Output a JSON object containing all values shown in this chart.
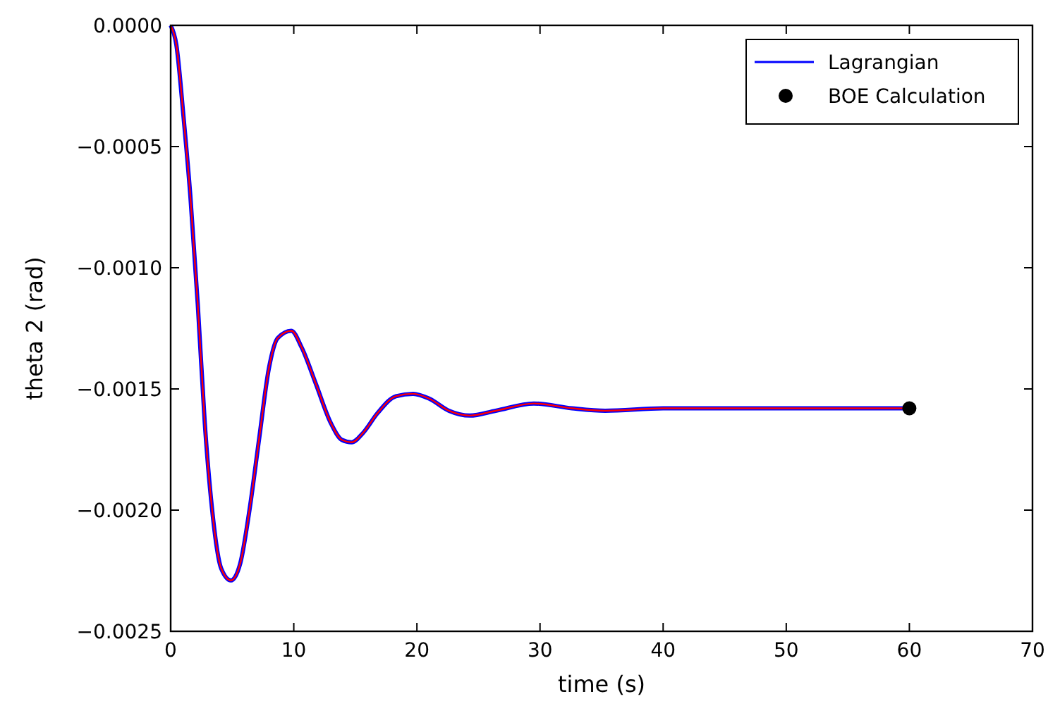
{
  "chart_data": {
    "type": "line",
    "xlabel": "time (s)",
    "ylabel": "theta 2 (rad)",
    "xlim": [
      0,
      70
    ],
    "xticks": [
      0,
      10,
      20,
      30,
      40,
      50,
      60,
      70
    ],
    "ylim": [
      -0.0025,
      0
    ],
    "yticks": [
      {
        "value": -0.0025,
        "label": "−0.0025"
      },
      {
        "value": -0.002,
        "label": "−0.0020"
      },
      {
        "value": -0.0015,
        "label": "−0.0015"
      },
      {
        "value": -0.001,
        "label": "−0.0010"
      },
      {
        "value": -0.0005,
        "label": "−0.0005"
      },
      {
        "value": 0,
        "label": "0.0000"
      }
    ],
    "x": [
      0,
      0.46,
      1.04,
      1.6,
      2.2,
      2.77,
      3.35,
      4.1,
      4.9,
      5.65,
      6.4,
      7.2,
      7.96,
      8.7,
      9.8,
      10.65,
      11.8,
      13.0,
      13.9,
      14.7,
      15.65,
      16.8,
      18.3,
      19.7,
      21.0,
      22.6,
      24.3,
      26.4,
      29.5,
      32.6,
      35.3,
      40,
      50,
      60
    ],
    "series": [
      {
        "name": "Lagrangian",
        "color": "#0000ff",
        "values": [
          0,
          -8e-05,
          -0.000375,
          -0.000705,
          -0.00115,
          -0.00164,
          -0.00199,
          -0.00224,
          -0.00229,
          -0.00222,
          -0.002,
          -0.0017,
          -0.00142,
          -0.00129,
          -0.00126,
          -0.00133,
          -0.00148,
          -0.00164,
          -0.00171,
          -0.00172,
          -0.00168,
          -0.0016,
          -0.00153,
          -0.00152,
          -0.00154,
          -0.00159,
          -0.00161,
          -0.00159,
          -0.00156,
          -0.00158,
          -0.00159,
          -0.00158,
          -0.00158,
          -0.00158
        ]
      },
      {
        "color": "#ff0000",
        "values": [
          0,
          -8e-05,
          -0.000375,
          -0.000705,
          -0.00115,
          -0.00164,
          -0.00199,
          -0.00224,
          -0.00229,
          -0.00222,
          -0.002,
          -0.0017,
          -0.00142,
          -0.00129,
          -0.00126,
          -0.00133,
          -0.00148,
          -0.00164,
          -0.00171,
          -0.00172,
          -0.00168,
          -0.0016,
          -0.00153,
          -0.00152,
          -0.00154,
          -0.00159,
          -0.00161,
          -0.00159,
          -0.00156,
          -0.00158,
          -0.00159,
          -0.00158,
          -0.00158,
          -0.00158
        ]
      },
      {
        "name": "BOE Calculation",
        "type": "scatter",
        "color": "#000000",
        "marker": "circle",
        "x": [
          60
        ],
        "values": [
          -0.00158
        ]
      }
    ],
    "legend": "top right",
    "grid": false
  }
}
